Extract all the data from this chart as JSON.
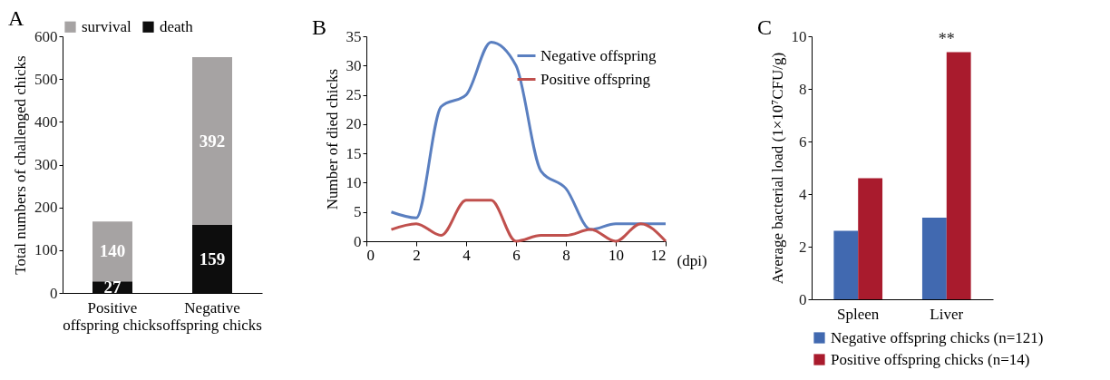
{
  "chart_data": [
    {
      "type": "bar",
      "title": "A",
      "ylabel": "Total numbers of challenged chicks",
      "categories": [
        "Positive offspring chicks",
        "Negative offspring chicks"
      ],
      "stacked": true,
      "data_labels": true,
      "legend": "top",
      "ylim": [
        0,
        600
      ],
      "yticks": [
        0,
        100,
        200,
        300,
        400,
        500,
        600
      ],
      "series": [
        {
          "name": "death",
          "color": "#0d0d0d",
          "values": [
            27,
            159
          ]
        },
        {
          "name": "survival",
          "color": "#a6a3a3",
          "values": [
            140,
            392
          ]
        }
      ]
    },
    {
      "type": "line",
      "title": "B",
      "ylabel": "Number of died chicks",
      "xlabel": "(dpi)",
      "x": [
        1,
        2,
        3,
        4,
        5,
        6,
        7,
        8,
        9,
        10,
        11,
        12
      ],
      "legend": "top right",
      "xlim": [
        0,
        12
      ],
      "xticks": [
        0,
        2,
        4,
        6,
        8,
        10,
        12
      ],
      "ylim": [
        0,
        35
      ],
      "yticks": [
        0,
        5,
        10,
        15,
        20,
        25,
        30,
        35
      ],
      "series": [
        {
          "name": "Negative offspring",
          "color": "#5a7fc0",
          "values": [
            5,
            4,
            23,
            25,
            34,
            30,
            12,
            9,
            2,
            3,
            3,
            3
          ]
        },
        {
          "name": "Positive offspring",
          "color": "#c0504d",
          "values": [
            2,
            3,
            1,
            7,
            7,
            0,
            1,
            1,
            2,
            0,
            3,
            0
          ]
        }
      ]
    },
    {
      "type": "bar",
      "title": "C",
      "ylabel": "Average bacterial load (1×10⁷CFU/g)",
      "categories": [
        "Spleen",
        "Liver"
      ],
      "legend": "bottom",
      "ylim": [
        0,
        10
      ],
      "yticks": [
        0,
        2,
        4,
        6,
        8,
        10
      ],
      "annotations": [
        {
          "text": "**",
          "x": "Liver",
          "y": 9.4
        }
      ],
      "series": [
        {
          "name": "Negative offspring chicks (n=121)",
          "color": "#4169b0",
          "values": [
            2.6,
            3.1
          ]
        },
        {
          "name": "Positive offspring chicks (n=14)",
          "color": "#a91b2d",
          "values": [
            4.6,
            9.4
          ]
        }
      ]
    }
  ]
}
